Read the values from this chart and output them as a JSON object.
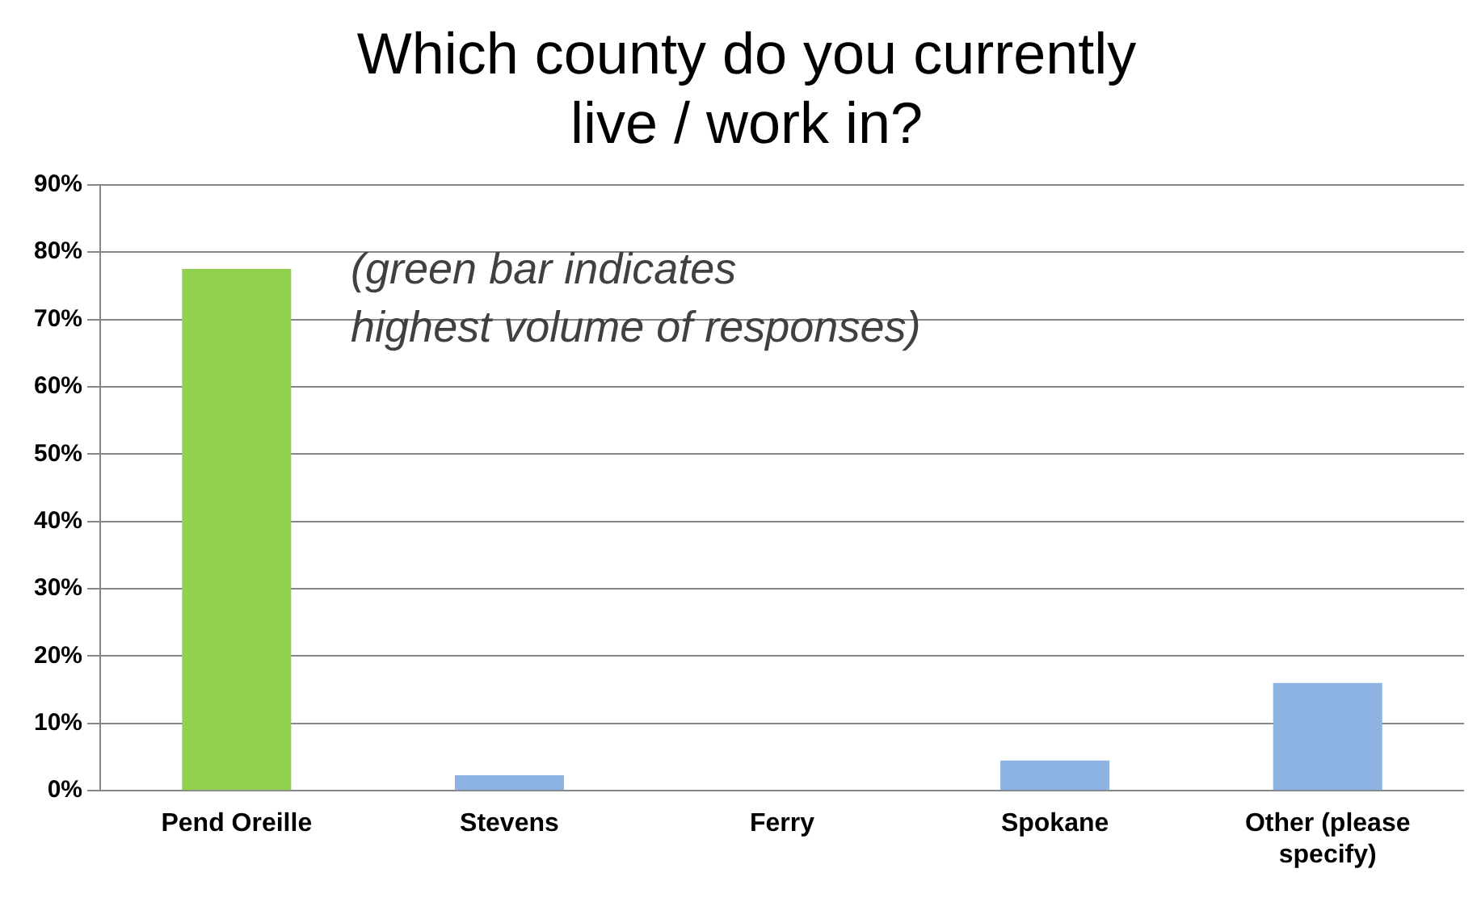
{
  "chart_data": {
    "type": "bar",
    "title": [
      "Which county do you currently",
      "live / work in?"
    ],
    "categories": [
      "Pend Oreille",
      "Stevens",
      "Ferry",
      "Spokane",
      "Other (please specify)"
    ],
    "values": [
      77.5,
      2.3,
      0,
      4.5,
      16
    ],
    "colors": [
      "#92d050",
      "#8db3e2",
      "#8db3e2",
      "#8db3e2",
      "#8db3e2"
    ],
    "ylim": [
      0,
      90
    ],
    "yticks": [
      {
        "value": 0,
        "label": "0%"
      },
      {
        "value": 10,
        "label": "10%"
      },
      {
        "value": 20,
        "label": "20%"
      },
      {
        "value": 30,
        "label": "30%"
      },
      {
        "value": 40,
        "label": "40%"
      },
      {
        "value": 50,
        "label": "50%"
      },
      {
        "value": 60,
        "label": "60%"
      },
      {
        "value": 70,
        "label": "70%"
      },
      {
        "value": 80,
        "label": "80%"
      },
      {
        "value": 90,
        "label": "90%"
      }
    ],
    "grid": "y",
    "annotations": [
      "(green bar indicates\nhighest volume of responses)"
    ]
  }
}
